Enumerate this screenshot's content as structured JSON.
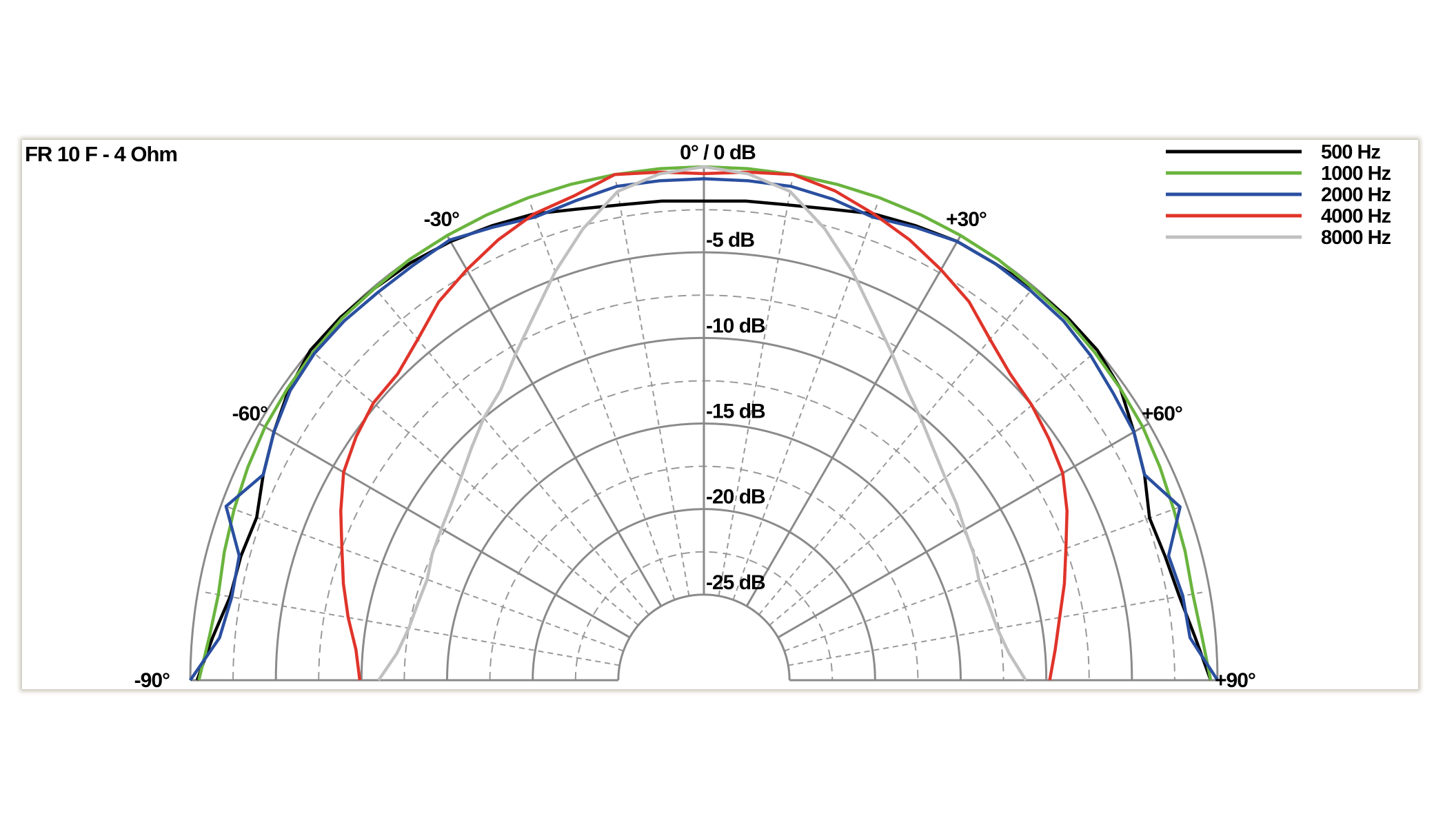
{
  "chart_data": {
    "type": "polar-line",
    "title": "FR 10 F - 4 Ohm",
    "top_label": "0° / 0 dB",
    "angle_range": [
      -90,
      90
    ],
    "angle_ticks": [
      {
        "value": -90,
        "label": "-90°"
      },
      {
        "value": -60,
        "label": "-60°"
      },
      {
        "value": -30,
        "label": "-30°"
      },
      {
        "value": 30,
        "label": "+30°"
      },
      {
        "value": 60,
        "label": "+60°"
      },
      {
        "value": 90,
        "label": "+90°"
      }
    ],
    "radial_range_db": [
      -25,
      0
    ],
    "radial_ticks": [
      {
        "value": -5,
        "label": "-5 dB"
      },
      {
        "value": -10,
        "label": "-10 dB"
      },
      {
        "value": -15,
        "label": "-15 dB"
      },
      {
        "value": -20,
        "label": "-20 dB"
      },
      {
        "value": -25,
        "label": "-25 dB"
      }
    ],
    "grid": true,
    "legend_position": "top-right",
    "angles": [
      -90,
      -85,
      -80,
      -75,
      -70,
      -65,
      -60,
      -55,
      -50,
      -45,
      -40,
      -35,
      -30,
      -25,
      -20,
      -15,
      -10,
      -5,
      0,
      5,
      10,
      15,
      20,
      25,
      30,
      35,
      40,
      45,
      50,
      55,
      60,
      65,
      70,
      75,
      80,
      85,
      90
    ],
    "series": [
      {
        "name": "500 Hz",
        "color": "#000000",
        "values": [
          -0.4,
          -1.2,
          -1.9,
          -2.0,
          -2.2,
          -1.6,
          -1.0,
          -0.4,
          0,
          0,
          -0.1,
          -0.2,
          -0.4,
          -0.7,
          -1.0,
          -1.5,
          -1.8,
          -1.9,
          -2.0,
          -1.9,
          -1.8,
          -1.5,
          -1.0,
          -0.7,
          -0.4,
          -0.3,
          -0.1,
          0,
          0,
          -0.3,
          -1.0,
          -1.6,
          -2.3,
          -2.1,
          -1.8,
          -1.2,
          -0.4
        ]
      },
      {
        "name": "1000 Hz",
        "color": "#6ab43e",
        "values": [
          -0.5,
          -1.0,
          -1.2,
          -1.0,
          -0.8,
          -0.6,
          -0.4,
          -0.3,
          -0.2,
          -0.1,
          -0.1,
          0,
          0,
          0,
          0,
          0,
          0,
          0,
          0,
          0,
          0,
          0,
          0,
          0,
          0,
          0,
          -0.1,
          -0.1,
          -0.2,
          -0.3,
          -0.4,
          -0.6,
          -0.8,
          -0.9,
          -1.0,
          -0.8,
          -0.4
        ]
      },
      {
        "name": "2000 Hz",
        "color": "#2a4fa0",
        "values": [
          0,
          -1.6,
          -2.0,
          -1.9,
          -0.3,
          -1.6,
          -1.0,
          -0.5,
          -0.3,
          -0.3,
          -0.4,
          -0.4,
          -0.3,
          -0.8,
          -1.2,
          -1.0,
          -0.7,
          -0.7,
          -0.7,
          -0.7,
          -0.7,
          -0.9,
          -1.2,
          -0.8,
          -0.4,
          -0.3,
          -0.3,
          -0.3,
          -0.5,
          -0.8,
          -1.0,
          -1.6,
          -0.4,
          -1.9,
          -1.6,
          -1.5,
          0
        ]
      },
      {
        "name": "4000 Hz",
        "color": "#e0342a",
        "values": [
          -9.9,
          -9.6,
          -8.9,
          -8.2,
          -7.5,
          -6.6,
          -5.7,
          -5.2,
          -4.8,
          -4.7,
          -4.0,
          -3.0,
          -2.3,
          -1.6,
          -1.0,
          -0.7,
          0,
          -0.2,
          -0.4,
          -0.2,
          0,
          -0.4,
          -1.0,
          -1.6,
          -2.3,
          -3.0,
          -4.0,
          -4.7,
          -5.0,
          -5.4,
          -5.8,
          -6.6,
          -7.5,
          -8.2,
          -8.9,
          -9.4,
          -9.8
        ]
      },
      {
        "name": "8000 Hz",
        "color": "#c0c0c0",
        "values": [
          -11.0,
          -12.0,
          -12.5,
          -12.7,
          -12.8,
          -12.5,
          -12.3,
          -12.0,
          -11.5,
          -10.8,
          -10.0,
          -9.3,
          -8.0,
          -6.5,
          -4.6,
          -2.7,
          -1.0,
          -0.3,
          0,
          -0.3,
          -1.0,
          -2.7,
          -4.6,
          -6.5,
          -8.0,
          -9.3,
          -10.2,
          -11.0,
          -11.6,
          -12.0,
          -12.4,
          -12.6,
          -12.9,
          -12.8,
          -12.6,
          -12.1,
          -11.2
        ]
      }
    ]
  }
}
